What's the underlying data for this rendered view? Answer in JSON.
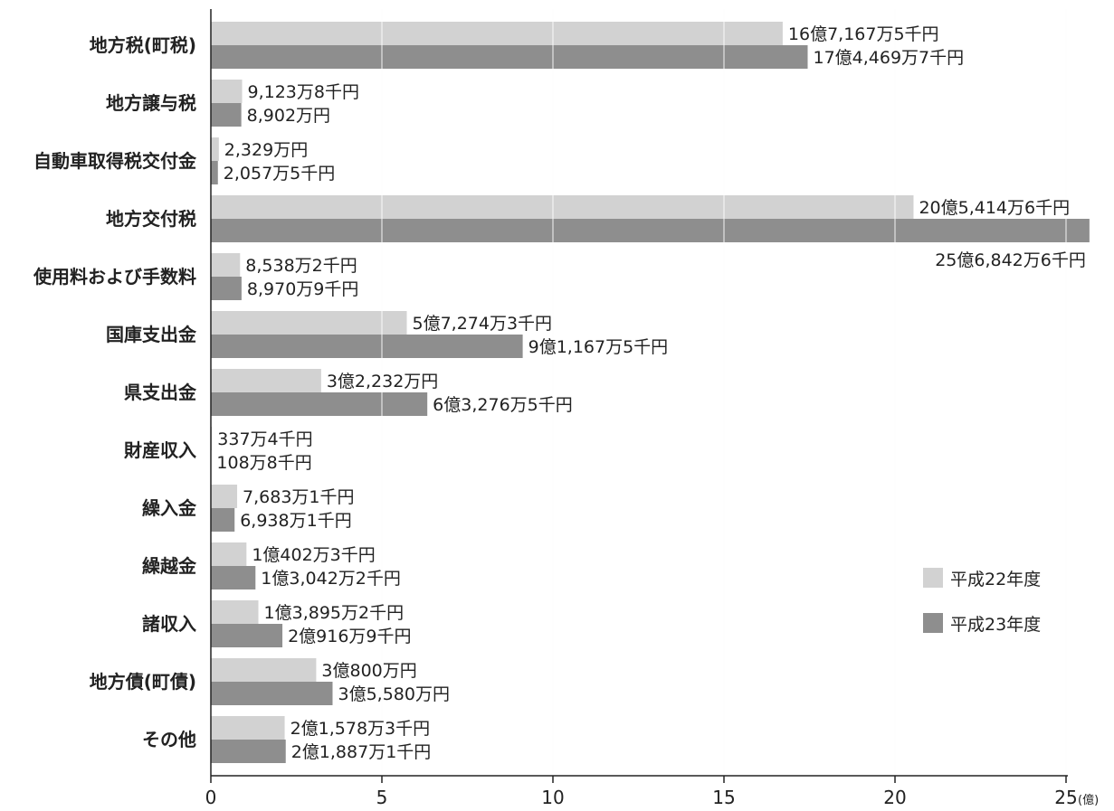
{
  "chart_data": {
    "type": "bar",
    "orientation": "horizontal",
    "categories": [
      "地方税(町税)",
      "地方譲与税",
      "自動車取得税交付金",
      "地方交付税",
      "使用料および手数料",
      "国庫支出金",
      "県支出金",
      "財産収入",
      "繰入金",
      "繰越金",
      "諸収入",
      "地方債(町債)",
      "その他"
    ],
    "series": [
      {
        "name": "平成22年度",
        "color": "#d2d2d2",
        "values": [
          16.71675,
          0.91238,
          0.2329,
          20.54146,
          0.85382,
          5.72743,
          3.2232,
          0.03374,
          0.76831,
          1.04023,
          1.38952,
          3.08,
          2.15783
        ],
        "labels": [
          "16億7,167万5千円",
          "9,123万8千円",
          "2,329万円",
          "20億5,414万6千円",
          "8,538万2千円",
          "5億7,274万3千円",
          "3億2,232万円",
          "337万4千円",
          "7,683万1千円",
          "1億402万3千円",
          "1億3,895万2千円",
          "3億800万円",
          "2億1,578万3千円"
        ]
      },
      {
        "name": "平成23年度",
        "color": "#8e8e8e",
        "values": [
          17.44697,
          0.8902,
          0.20575,
          25.68426,
          0.89709,
          9.11675,
          6.32765,
          0.01088,
          0.69381,
          1.30422,
          2.09169,
          3.558,
          2.18871
        ],
        "labels": [
          "17億4,469万7千円",
          "8,902万円",
          "2,057万5千円",
          "25億6,842万6千円",
          "8,970万9千円",
          "9億1,167万5千円",
          "6億3,276万5千円",
          "108万8千円",
          "6,938万1千円",
          "1億3,042万2千円",
          "2億916万9千円",
          "3億5,580万円",
          "2億1,887万1千円"
        ]
      }
    ],
    "xlim": [
      0,
      25
    ],
    "xticks": [
      "0",
      "5",
      "10",
      "15",
      "20",
      "25"
    ],
    "xunit": "(億)",
    "grid": "vertical",
    "legend_position": "right"
  }
}
